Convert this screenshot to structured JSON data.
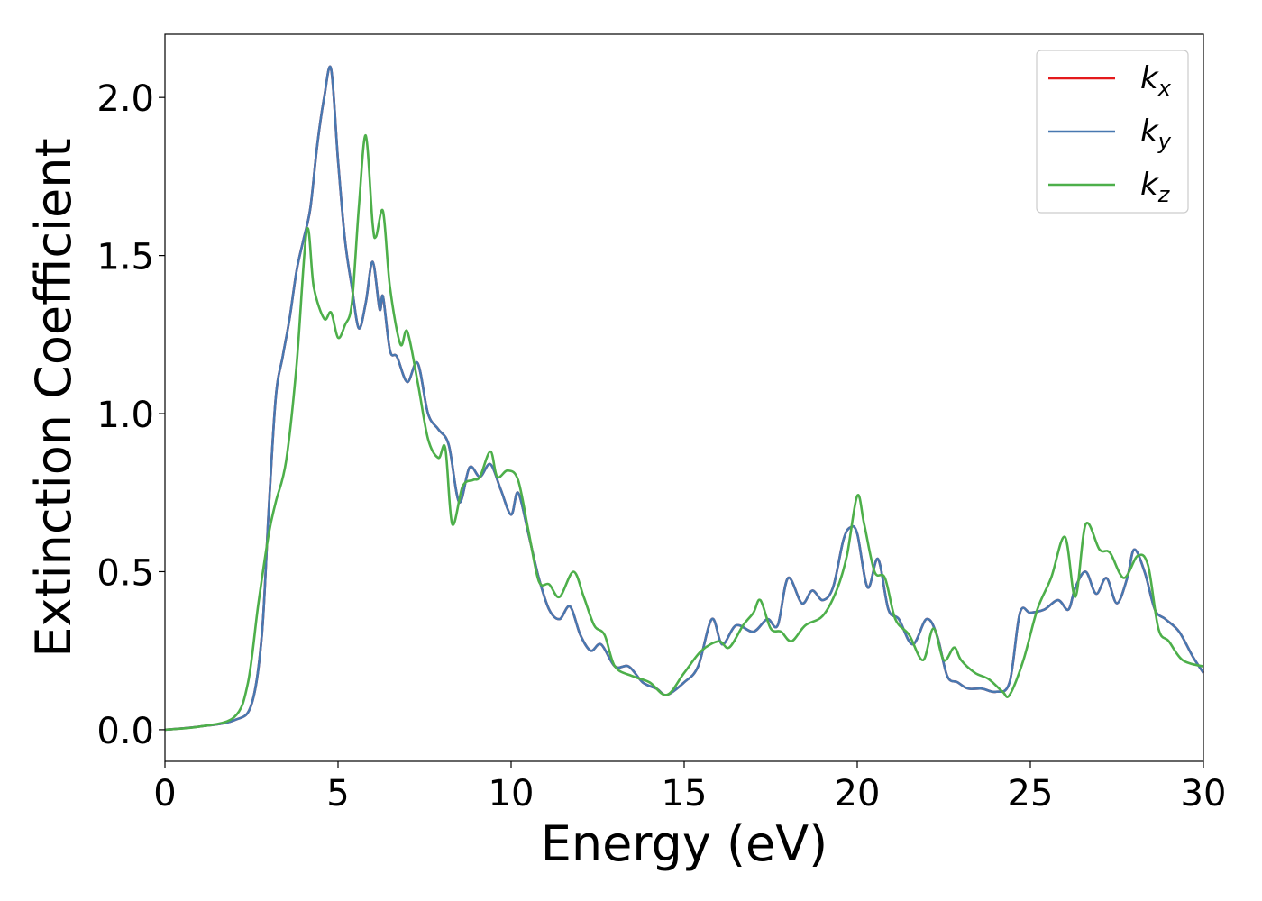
{
  "chart_data": {
    "type": "line",
    "title": "",
    "xlabel": "Energy (eV)",
    "ylabel": "Extinction Coefficient",
    "xlim": [
      0,
      30
    ],
    "ylim": [
      -0.1,
      2.2
    ],
    "xticks": [
      0,
      5,
      10,
      15,
      20,
      25,
      30
    ],
    "xtick_labels": [
      "0",
      "5",
      "10",
      "15",
      "20",
      "25",
      "30"
    ],
    "yticks": [
      0.0,
      0.5,
      1.0,
      1.5,
      2.0
    ],
    "ytick_labels": [
      "0.0",
      "0.5",
      "1.0",
      "1.5",
      "2.0"
    ],
    "grid": false,
    "legend_position": "top-right",
    "series": [
      {
        "name": "k_x",
        "color": "#e41a1c",
        "x": [
          0,
          1,
          2,
          2.5,
          2.8,
          3.0,
          3.2,
          3.4,
          3.6,
          3.8,
          4.0,
          4.2,
          4.4,
          4.6,
          4.8,
          5.0,
          5.2,
          5.4,
          5.6,
          5.8,
          6.0,
          6.2,
          6.3,
          6.5,
          6.7,
          7.0,
          7.3,
          7.6,
          7.9,
          8.2,
          8.5,
          8.8,
          9.1,
          9.4,
          9.7,
          10.0,
          10.2,
          10.5,
          10.8,
          11.1,
          11.4,
          11.7,
          12.0,
          12.3,
          12.6,
          13.0,
          13.4,
          13.8,
          14.2,
          14.5,
          15.0,
          15.4,
          15.8,
          16.1,
          16.5,
          17.0,
          17.4,
          17.7,
          18.0,
          18.4,
          18.7,
          19.0,
          19.3,
          19.6,
          19.8,
          20.0,
          20.3,
          20.6,
          20.9,
          21.2,
          21.6,
          22.0,
          22.3,
          22.6,
          22.9,
          23.2,
          23.6,
          24.0,
          24.4,
          24.7,
          25.0,
          25.4,
          25.8,
          26.1,
          26.3,
          26.6,
          26.9,
          27.2,
          27.5,
          27.8,
          28.0,
          28.3,
          28.6,
          28.9,
          29.3,
          29.7,
          30.0
        ],
        "y": [
          0.0,
          0.01,
          0.03,
          0.08,
          0.3,
          0.7,
          1.05,
          1.18,
          1.3,
          1.45,
          1.55,
          1.65,
          1.85,
          2.0,
          2.09,
          1.8,
          1.55,
          1.4,
          1.27,
          1.35,
          1.48,
          1.33,
          1.37,
          1.2,
          1.18,
          1.1,
          1.16,
          1.0,
          0.95,
          0.9,
          0.72,
          0.83,
          0.8,
          0.84,
          0.76,
          0.68,
          0.75,
          0.62,
          0.48,
          0.38,
          0.35,
          0.39,
          0.3,
          0.25,
          0.27,
          0.2,
          0.2,
          0.15,
          0.13,
          0.11,
          0.15,
          0.2,
          0.35,
          0.27,
          0.33,
          0.31,
          0.35,
          0.33,
          0.48,
          0.4,
          0.44,
          0.41,
          0.45,
          0.6,
          0.64,
          0.62,
          0.45,
          0.54,
          0.38,
          0.35,
          0.27,
          0.35,
          0.3,
          0.17,
          0.15,
          0.13,
          0.13,
          0.12,
          0.15,
          0.37,
          0.37,
          0.38,
          0.41,
          0.38,
          0.45,
          0.5,
          0.43,
          0.48,
          0.4,
          0.48,
          0.57,
          0.5,
          0.38,
          0.35,
          0.31,
          0.23,
          0.18
        ]
      },
      {
        "name": "k_y",
        "color": "#4878b0",
        "x": [
          0,
          1,
          2,
          2.5,
          2.8,
          3.0,
          3.2,
          3.4,
          3.6,
          3.8,
          4.0,
          4.2,
          4.4,
          4.6,
          4.8,
          5.0,
          5.2,
          5.4,
          5.6,
          5.8,
          6.0,
          6.2,
          6.3,
          6.5,
          6.7,
          7.0,
          7.3,
          7.6,
          7.9,
          8.2,
          8.5,
          8.8,
          9.1,
          9.4,
          9.7,
          10.0,
          10.2,
          10.5,
          10.8,
          11.1,
          11.4,
          11.7,
          12.0,
          12.3,
          12.6,
          13.0,
          13.4,
          13.8,
          14.2,
          14.5,
          15.0,
          15.4,
          15.8,
          16.1,
          16.5,
          17.0,
          17.4,
          17.7,
          18.0,
          18.4,
          18.7,
          19.0,
          19.3,
          19.6,
          19.8,
          20.0,
          20.3,
          20.6,
          20.9,
          21.2,
          21.6,
          22.0,
          22.3,
          22.6,
          22.9,
          23.2,
          23.6,
          24.0,
          24.4,
          24.7,
          25.0,
          25.4,
          25.8,
          26.1,
          26.3,
          26.6,
          26.9,
          27.2,
          27.5,
          27.8,
          28.0,
          28.3,
          28.6,
          28.9,
          29.3,
          29.7,
          30.0
        ],
        "y": [
          0.0,
          0.01,
          0.03,
          0.08,
          0.3,
          0.7,
          1.05,
          1.18,
          1.3,
          1.45,
          1.55,
          1.65,
          1.85,
          2.0,
          2.09,
          1.8,
          1.55,
          1.4,
          1.27,
          1.35,
          1.48,
          1.33,
          1.37,
          1.2,
          1.18,
          1.1,
          1.16,
          1.0,
          0.95,
          0.9,
          0.72,
          0.83,
          0.8,
          0.84,
          0.76,
          0.68,
          0.75,
          0.62,
          0.48,
          0.38,
          0.35,
          0.39,
          0.3,
          0.25,
          0.27,
          0.2,
          0.2,
          0.15,
          0.13,
          0.11,
          0.15,
          0.2,
          0.35,
          0.27,
          0.33,
          0.31,
          0.35,
          0.33,
          0.48,
          0.4,
          0.44,
          0.41,
          0.45,
          0.6,
          0.64,
          0.62,
          0.45,
          0.54,
          0.38,
          0.35,
          0.27,
          0.35,
          0.3,
          0.17,
          0.15,
          0.13,
          0.13,
          0.12,
          0.15,
          0.37,
          0.37,
          0.38,
          0.41,
          0.38,
          0.45,
          0.5,
          0.43,
          0.48,
          0.4,
          0.48,
          0.57,
          0.5,
          0.38,
          0.35,
          0.31,
          0.23,
          0.18
        ]
      },
      {
        "name": "k_z",
        "color": "#4daf4a",
        "x": [
          0,
          1,
          2,
          2.4,
          2.7,
          3.0,
          3.2,
          3.5,
          3.8,
          4.1,
          4.3,
          4.6,
          4.8,
          5.0,
          5.2,
          5.4,
          5.6,
          5.8,
          6.0,
          6.1,
          6.3,
          6.5,
          6.8,
          7.0,
          7.3,
          7.6,
          7.9,
          8.1,
          8.3,
          8.6,
          8.9,
          9.1,
          9.4,
          9.6,
          9.9,
          10.2,
          10.5,
          10.8,
          11.1,
          11.4,
          11.8,
          12.1,
          12.4,
          12.7,
          13.0,
          13.5,
          14.0,
          14.5,
          15.0,
          15.5,
          16.0,
          16.3,
          16.7,
          17.0,
          17.2,
          17.5,
          17.8,
          18.1,
          18.5,
          19.0,
          19.4,
          19.7,
          20.0,
          20.2,
          20.5,
          20.8,
          21.1,
          21.5,
          21.9,
          22.2,
          22.5,
          22.8,
          23.0,
          23.4,
          23.8,
          24.2,
          24.4,
          24.8,
          25.2,
          25.6,
          26.0,
          26.3,
          26.6,
          27.0,
          27.3,
          27.7,
          28.1,
          28.4,
          28.7,
          29.0,
          29.4,
          30.0
        ],
        "y": [
          0.0,
          0.01,
          0.04,
          0.15,
          0.4,
          0.62,
          0.72,
          0.85,
          1.15,
          1.58,
          1.4,
          1.3,
          1.32,
          1.24,
          1.28,
          1.35,
          1.65,
          1.88,
          1.6,
          1.56,
          1.64,
          1.4,
          1.22,
          1.26,
          1.1,
          0.92,
          0.86,
          0.89,
          0.65,
          0.77,
          0.79,
          0.8,
          0.88,
          0.8,
          0.82,
          0.79,
          0.63,
          0.47,
          0.46,
          0.42,
          0.5,
          0.42,
          0.33,
          0.3,
          0.2,
          0.17,
          0.15,
          0.11,
          0.18,
          0.25,
          0.28,
          0.26,
          0.33,
          0.37,
          0.41,
          0.32,
          0.31,
          0.28,
          0.33,
          0.36,
          0.44,
          0.55,
          0.74,
          0.65,
          0.5,
          0.48,
          0.35,
          0.3,
          0.22,
          0.32,
          0.22,
          0.26,
          0.22,
          0.18,
          0.16,
          0.12,
          0.11,
          0.22,
          0.38,
          0.48,
          0.61,
          0.42,
          0.65,
          0.57,
          0.56,
          0.48,
          0.55,
          0.52,
          0.32,
          0.28,
          0.22,
          0.2
        ]
      }
    ]
  }
}
